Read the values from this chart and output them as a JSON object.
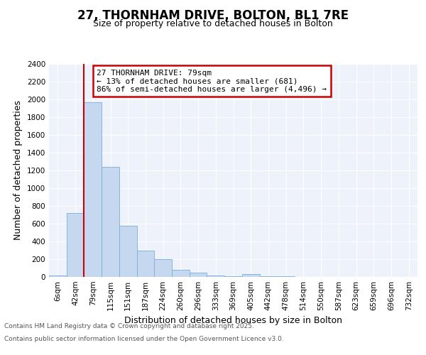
{
  "title": "27, THORNHAM DRIVE, BOLTON, BL1 7RE",
  "subtitle": "Size of property relative to detached houses in Bolton",
  "xlabel": "Distribution of detached houses by size in Bolton",
  "ylabel": "Number of detached properties",
  "bar_labels": [
    "6sqm",
    "42sqm",
    "79sqm",
    "115sqm",
    "151sqm",
    "187sqm",
    "224sqm",
    "260sqm",
    "296sqm",
    "333sqm",
    "369sqm",
    "405sqm",
    "442sqm",
    "478sqm",
    "514sqm",
    "550sqm",
    "587sqm",
    "623sqm",
    "659sqm",
    "696sqm",
    "732sqm"
  ],
  "bar_values": [
    15,
    720,
    1970,
    1240,
    580,
    300,
    200,
    80,
    45,
    18,
    5,
    30,
    5,
    5,
    2,
    2,
    2,
    1,
    1,
    1,
    1
  ],
  "bar_color": "#c5d8f0",
  "bar_edge_color": "#7aaed6",
  "red_line_index": 2,
  "ylim": [
    0,
    2400
  ],
  "yticks": [
    0,
    200,
    400,
    600,
    800,
    1000,
    1200,
    1400,
    1600,
    1800,
    2000,
    2200,
    2400
  ],
  "annotation_title": "27 THORNHAM DRIVE: 79sqm",
  "annotation_line1": "← 13% of detached houses are smaller (681)",
  "annotation_line2": "86% of semi-detached houses are larger (4,496) →",
  "annotation_box_color": "#ffffff",
  "annotation_box_edge_color": "#cc0000",
  "footer_line1": "Contains HM Land Registry data © Crown copyright and database right 2025.",
  "footer_line2": "Contains public sector information licensed under the Open Government Licence v3.0.",
  "background_color": "#ffffff",
  "plot_bg_color": "#eef2fb",
  "grid_color": "#ffffff",
  "title_fontsize": 12,
  "subtitle_fontsize": 9,
  "axis_label_fontsize": 9,
  "tick_fontsize": 7.5,
  "footer_fontsize": 6.5,
  "annotation_fontsize": 8
}
